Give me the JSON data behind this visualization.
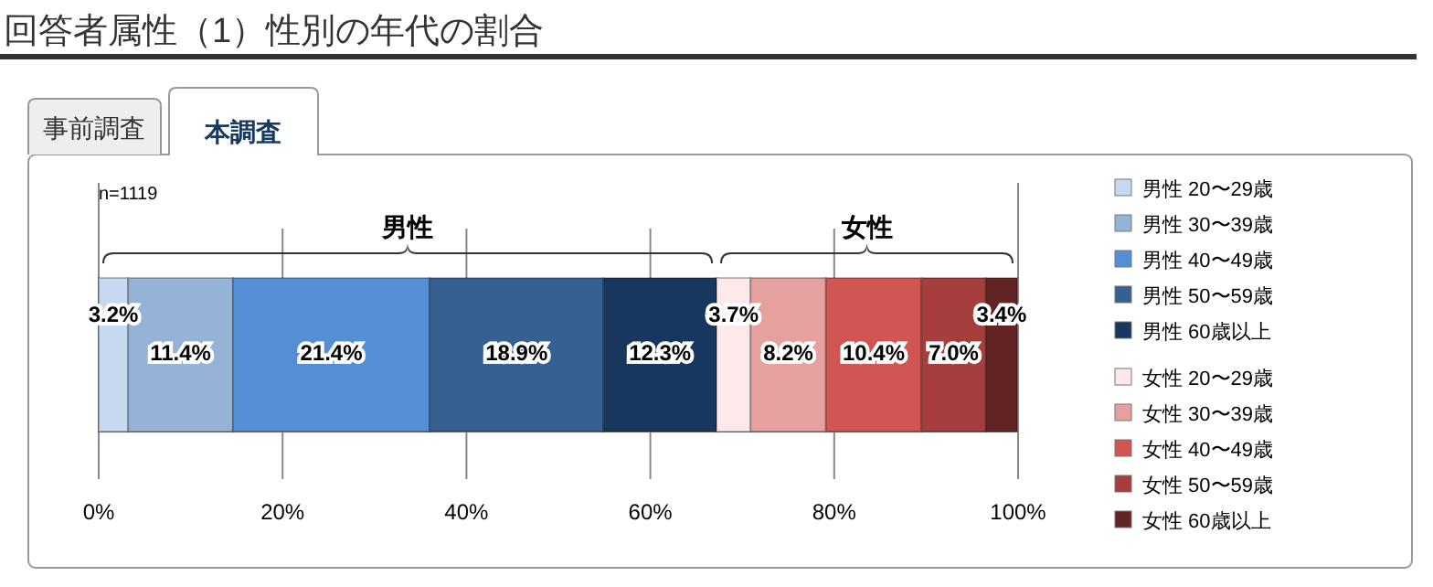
{
  "chart_data": {
    "type": "bar",
    "orientation": "horizontal",
    "stacked": true,
    "title": "回答者属性（1）性別の年代の割合",
    "annotations": [
      "事前調査",
      "本調査",
      "n=1119",
      "男性",
      "女性"
    ],
    "categories": [
      null
    ],
    "xlim": [
      0,
      100
    ],
    "xticks": [
      {
        "value": 0,
        "label": "0%"
      },
      {
        "value": 20,
        "label": "20%"
      },
      {
        "value": 40,
        "label": "40%"
      },
      {
        "value": 60,
        "label": "60%"
      },
      {
        "value": 80,
        "label": "80%"
      },
      {
        "value": 100,
        "label": "100%"
      }
    ],
    "grid": "x",
    "legend": "right",
    "series": [
      {
        "name": "男性 20〜29歳",
        "color": "#c6d9f1",
        "values": [
          3.2
        ],
        "value_labels": [
          "3.2%"
        ]
      },
      {
        "name": "男性 30〜39歳",
        "color": "#95b3d7",
        "values": [
          11.4
        ],
        "value_labels": [
          "11.4%"
        ]
      },
      {
        "name": "男性 40〜49歳",
        "color": "#558ed5",
        "values": [
          21.4
        ],
        "value_labels": [
          "21.4%"
        ]
      },
      {
        "name": "男性 50〜59歳",
        "color": "#376092",
        "values": [
          18.9
        ],
        "value_labels": [
          "18.9%"
        ]
      },
      {
        "name": "男性 60歳以上",
        "color": "#17375e",
        "values": [
          12.3
        ],
        "value_labels": [
          "12.3%"
        ]
      },
      {
        "name": "女性 20〜29歳",
        "color": "#fde9e9",
        "values": [
          3.7
        ],
        "value_labels": [
          "3.7%"
        ]
      },
      {
        "name": "女性 30〜39歳",
        "color": "#e6a09e",
        "values": [
          8.2
        ],
        "value_labels": [
          "8.2%"
        ]
      },
      {
        "name": "女性 40〜49歳",
        "color": "#d05553",
        "values": [
          10.4
        ],
        "value_labels": [
          "10.4%"
        ]
      },
      {
        "name": "女性 50〜59歳",
        "color": "#a53e3c",
        "values": [
          7.0
        ],
        "value_labels": [
          "7.0%"
        ]
      },
      {
        "name": "女性 60歳以上",
        "color": "#632523",
        "values": [
          3.4
        ],
        "value_labels": [
          "3.4%"
        ]
      }
    ]
  }
}
